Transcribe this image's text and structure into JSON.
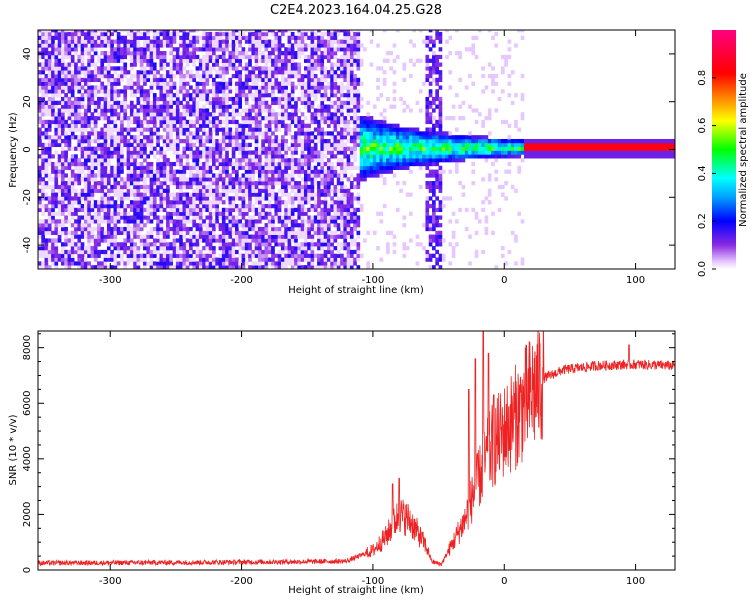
{
  "title": "C2E4.2023.164.04.25.G28",
  "colors": {
    "snr_line": "#ee2222",
    "axis": "#000000"
  },
  "chart_data": [
    {
      "type": "heatmap",
      "xlabel": "Height of straight line (km)",
      "ylabel": "Frequency (Hz)",
      "xlim": [
        -355,
        130
      ],
      "ylim": [
        -50,
        50
      ],
      "x_ticks": [
        -300,
        -200,
        -100,
        0,
        100
      ],
      "y_ticks": [
        -40,
        -20,
        0,
        20,
        40
      ],
      "grid": false,
      "colorbar": {
        "label": "Normalized spectral amplitude",
        "range": [
          0,
          1
        ],
        "ticks": [
          "0.0",
          "0.2",
          "0.4",
          "0.6",
          "0.8"
        ],
        "colormap": "rainbow"
      },
      "features": {
        "noise_region_x": [
          -355,
          -110
        ],
        "signal_onset_x": -120,
        "carrier_line_x": [
          15,
          130
        ],
        "carrier_frequency_hz": 0
      }
    },
    {
      "type": "line",
      "xlabel": "Height of straight line (km)",
      "ylabel": "SNR (10 * v/v)",
      "xlim": [
        -355,
        130
      ],
      "ylim": [
        0,
        8600
      ],
      "x_ticks": [
        -300,
        -200,
        -100,
        0,
        100
      ],
      "y_ticks": [
        0,
        2000,
        4000,
        6000,
        8000
      ],
      "grid": false,
      "envelope": [
        {
          "x": -355,
          "y": 250
        },
        {
          "x": -250,
          "y": 270
        },
        {
          "x": -150,
          "y": 300
        },
        {
          "x": -120,
          "y": 320
        },
        {
          "x": -100,
          "y": 700
        },
        {
          "x": -90,
          "y": 1200
        },
        {
          "x": -80,
          "y": 2000
        },
        {
          "x": -72,
          "y": 1800
        },
        {
          "x": -60,
          "y": 900
        },
        {
          "x": -55,
          "y": 300
        },
        {
          "x": -48,
          "y": 200
        },
        {
          "x": -40,
          "y": 900
        },
        {
          "x": -30,
          "y": 1800
        },
        {
          "x": -20,
          "y": 3200
        },
        {
          "x": -10,
          "y": 4400
        },
        {
          "x": 0,
          "y": 5000
        },
        {
          "x": 10,
          "y": 5600
        },
        {
          "x": 20,
          "y": 6300
        },
        {
          "x": 30,
          "y": 6900
        },
        {
          "x": 45,
          "y": 7200
        },
        {
          "x": 70,
          "y": 7350
        },
        {
          "x": 100,
          "y": 7400
        },
        {
          "x": 130,
          "y": 7350
        }
      ],
      "peaks": [
        {
          "x": -85,
          "y": 3100
        },
        {
          "x": -80,
          "y": 3300
        },
        {
          "x": -27,
          "y": 6500
        },
        {
          "x": -22,
          "y": 7600
        },
        {
          "x": -16,
          "y": 8600
        },
        {
          "x": -12,
          "y": 7800
        },
        {
          "x": -8,
          "y": 6300
        },
        {
          "x": 95,
          "y": 8100
        }
      ]
    }
  ]
}
